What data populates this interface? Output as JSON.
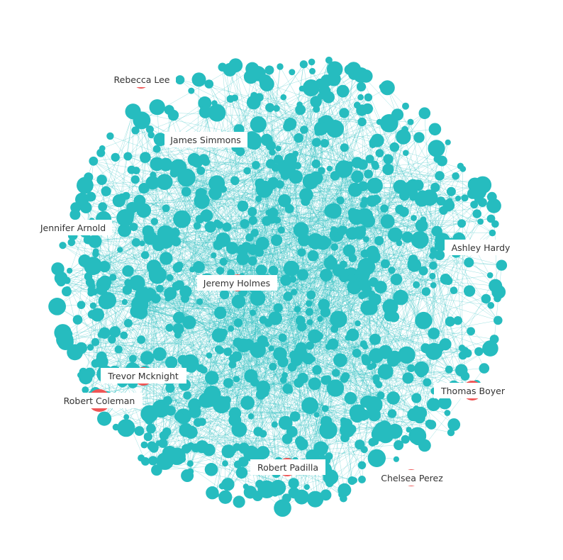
{
  "graph": {
    "node_color": "#26bcbf",
    "highlight_color": "#f05555",
    "edge_color": "#26bcbf",
    "label_text_color": "#333333",
    "labeled_nodes": [
      {
        "name": "Rebecca Lee"
      },
      {
        "name": "James Simmons"
      },
      {
        "name": "Jennifer Arnold"
      },
      {
        "name": "Ashley Hardy"
      },
      {
        "name": "Jeremy Holmes"
      },
      {
        "name": "Trevor Mcknight"
      },
      {
        "name": "Robert Coleman"
      },
      {
        "name": "Thomas Boyer"
      },
      {
        "name": "Robert Padilla"
      },
      {
        "name": "Chelsea Perez"
      }
    ]
  }
}
